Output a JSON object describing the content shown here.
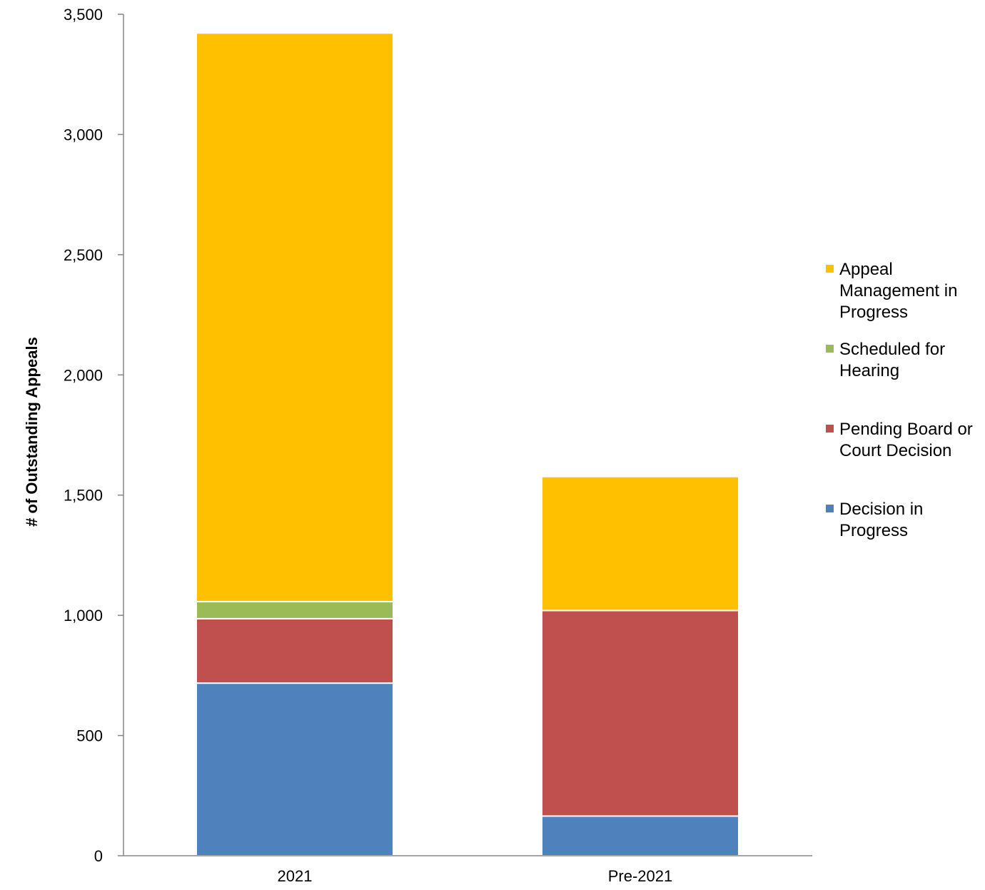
{
  "chart_data": {
    "type": "bar",
    "stacked": true,
    "categories": [
      "2021",
      "Pre-2021"
    ],
    "series": [
      {
        "name": "Decision in Progress",
        "legend_lines": [
          "Decision in",
          "Progress"
        ],
        "color": "#4f81bd",
        "values": [
          718,
          165
        ]
      },
      {
        "name": "Pending Board or Court Decision",
        "legend_lines": [
          "Pending Board or",
          "Court Decision"
        ],
        "color": "#c0504d",
        "values": [
          268,
          855
        ]
      },
      {
        "name": "Scheduled for Hearing",
        "legend_lines": [
          "Scheduled for",
          "Hearing"
        ],
        "color": "#9bbb59",
        "values": [
          71,
          0
        ]
      },
      {
        "name": "Appeal Management in Progress",
        "legend_lines": [
          "Appeal",
          "Management in",
          "Progress"
        ],
        "color": "#ffc000",
        "values": [
          2365,
          557
        ]
      }
    ],
    "ylabel": "# of Outstanding Appeals",
    "ylim": [
      0,
      3500
    ],
    "yticks": [
      0,
      500,
      1000,
      1500,
      2000,
      2500,
      3000,
      3500
    ],
    "ytick_labels": [
      "0",
      "500",
      "1,000",
      "1,500",
      "2,000",
      "2,500",
      "3,000",
      "3,500"
    ],
    "grid": false,
    "legend_position": "right"
  }
}
